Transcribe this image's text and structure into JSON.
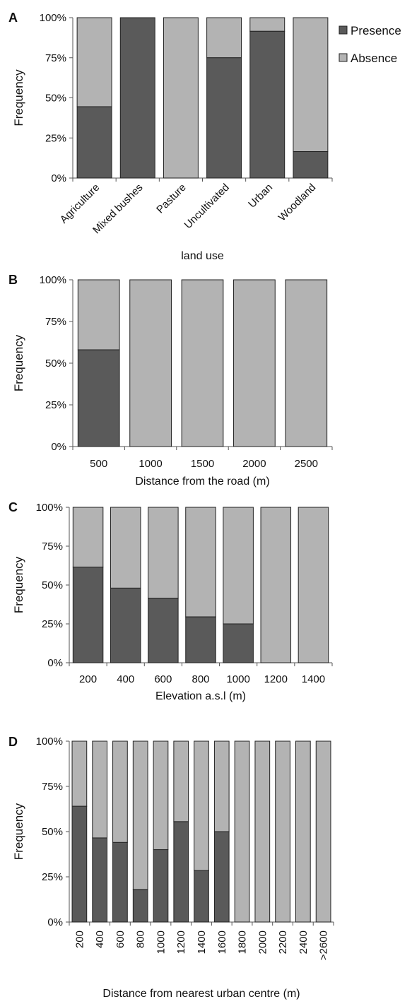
{
  "legend": {
    "presence_label": "Presence",
    "absence_label": "Absence",
    "presence_color": "#5a5a5a",
    "absence_color": "#b3b3b3"
  },
  "chart_data": [
    {
      "panel": "A",
      "type": "bar",
      "stacked": true,
      "percent": true,
      "xlabel": "land use",
      "ylabel": "Frequency",
      "ylim": [
        0,
        100
      ],
      "yticks": [
        "0%",
        "25%",
        "50%",
        "75%",
        "100%"
      ],
      "categories": [
        "Agriculture",
        "Mixed bushes",
        "Pasture",
        "Uncultivated",
        "Urban",
        "Woodland"
      ],
      "series": [
        {
          "name": "Presence",
          "values": [
            44.5,
            100,
            0,
            75,
            91.5,
            16.5
          ]
        },
        {
          "name": "Absence",
          "values": [
            55.5,
            0,
            100,
            25,
            8.5,
            83.5
          ]
        }
      ]
    },
    {
      "panel": "B",
      "type": "bar",
      "stacked": true,
      "percent": true,
      "xlabel": "Distance from the road (m)",
      "ylabel": "Frequency",
      "ylim": [
        0,
        100
      ],
      "yticks": [
        "0%",
        "25%",
        "50%",
        "75%",
        "100%"
      ],
      "categories": [
        "500",
        "1000",
        "1500",
        "2000",
        "2500"
      ],
      "series": [
        {
          "name": "Presence",
          "values": [
            58,
            0,
            0,
            0,
            0
          ]
        },
        {
          "name": "Absence",
          "values": [
            42,
            100,
            100,
            100,
            100
          ]
        }
      ]
    },
    {
      "panel": "C",
      "type": "bar",
      "stacked": true,
      "percent": true,
      "xlabel": "Elevation a.s.l (m)",
      "ylabel": "Frequency",
      "ylim": [
        0,
        100
      ],
      "yticks": [
        "0%",
        "25%",
        "50%",
        "75%",
        "100%"
      ],
      "categories": [
        "200",
        "400",
        "600",
        "800",
        "1000",
        "1200",
        "1400"
      ],
      "series": [
        {
          "name": "Presence",
          "values": [
            61.5,
            48,
            41.5,
            29.5,
            25,
            0,
            0
          ]
        },
        {
          "name": "Absence",
          "values": [
            38.5,
            52,
            58.5,
            70.5,
            75,
            100,
            100
          ]
        }
      ]
    },
    {
      "panel": "D",
      "type": "bar",
      "stacked": true,
      "percent": true,
      "xlabel": "Distance from nearest urban centre (m)",
      "ylabel": "Frequency",
      "ylim": [
        0,
        100
      ],
      "yticks": [
        "0%",
        "25%",
        "50%",
        "75%",
        "100%"
      ],
      "categories": [
        "200",
        "400",
        "600",
        "800",
        "1000",
        "1200",
        "1400",
        "1600",
        "1800",
        "2000",
        "2200",
        "2400",
        ">2600"
      ],
      "series": [
        {
          "name": "Presence",
          "values": [
            64,
            46.5,
            44,
            18,
            40,
            55.5,
            28.5,
            50,
            0,
            0,
            0,
            0,
            0
          ]
        },
        {
          "name": "Absence",
          "values": [
            36,
            53.5,
            56,
            82,
            60,
            44.5,
            71.5,
            50,
            100,
            100,
            100,
            100,
            100
          ]
        }
      ]
    }
  ]
}
